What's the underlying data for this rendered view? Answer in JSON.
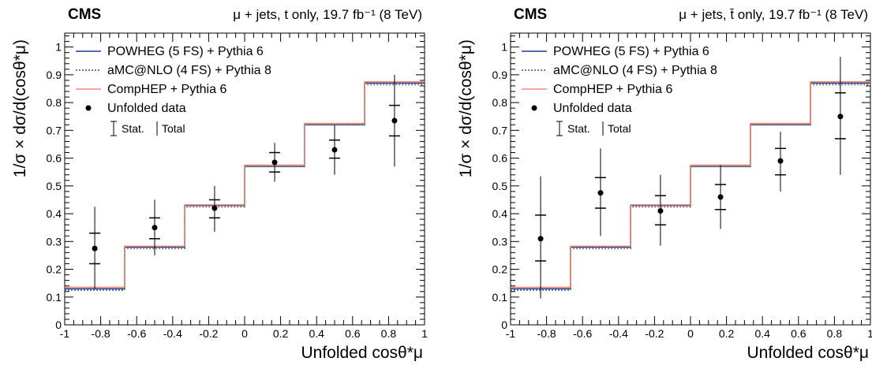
{
  "chart_data": [
    {
      "type": "line",
      "title": "",
      "experiment_label": "CMS",
      "header": "μ + jets, t only, 19.7 fb⁻¹ (8 TeV)",
      "xlabel": "Unfolded cosθ*μ",
      "ylabel": "1/σ × dσ/d(cosθ*μ)",
      "xlim": [
        -1,
        1
      ],
      "ylim": [
        0,
        1.05
      ],
      "x_ticks": [
        "-1",
        "-0.8",
        "-0.6",
        "-0.4",
        "-0.2",
        "0",
        "0.2",
        "0.4",
        "0.6",
        "0.8",
        "1"
      ],
      "y_ticks": [
        "0",
        "0.1",
        "0.2",
        "0.3",
        "0.4",
        "0.5",
        "0.6",
        "0.7",
        "0.8",
        "0.9",
        "1"
      ],
      "bin_edges": [
        -1,
        -0.667,
        -0.333,
        0,
        0.333,
        0.667,
        1
      ],
      "series": [
        {
          "name": "POWHEG (5 FS) + Pythia 6",
          "style": "solid",
          "color": "#1f3a93",
          "values": [
            0.13,
            0.28,
            0.43,
            0.57,
            0.72,
            0.87
          ]
        },
        {
          "name": "aMC@NLO (4 FS) + Pythia 8",
          "style": "dotted",
          "color": "#777777",
          "values": [
            0.125,
            0.275,
            0.425,
            0.57,
            0.72,
            0.865
          ]
        },
        {
          "name": "CompHEP + Pythia 6",
          "style": "solid",
          "color": "#f08a70",
          "values": [
            0.135,
            0.283,
            0.432,
            0.575,
            0.725,
            0.875
          ]
        }
      ],
      "data_points": {
        "name": "Unfolded data",
        "x": [
          -0.833,
          -0.5,
          -0.167,
          0.167,
          0.5,
          0.833
        ],
        "y": [
          0.275,
          0.35,
          0.42,
          0.585,
          0.63,
          0.735
        ],
        "stat_low": [
          0.22,
          0.31,
          0.385,
          0.55,
          0.6,
          0.68
        ],
        "stat_high": [
          0.33,
          0.385,
          0.45,
          0.62,
          0.665,
          0.79
        ],
        "total_low": [
          0.13,
          0.25,
          0.335,
          0.515,
          0.54,
          0.57
        ],
        "total_high": [
          0.425,
          0.45,
          0.5,
          0.655,
          0.72,
          0.9
        ]
      },
      "legend": {
        "stat_label": "Stat.",
        "total_label": "Total",
        "placement": "top-left"
      }
    },
    {
      "type": "line",
      "title": "",
      "experiment_label": "CMS",
      "header": "μ + jets, t̄ only, 19.7 fb⁻¹ (8 TeV)",
      "xlabel": "Unfolded cosθ*μ",
      "ylabel": "1/σ × dσ/d(cosθ*μ)",
      "xlim": [
        -1,
        1
      ],
      "ylim": [
        0,
        1.05
      ],
      "x_ticks": [
        "-1",
        "-0.8",
        "-0.6",
        "-0.4",
        "-0.2",
        "0",
        "0.2",
        "0.4",
        "0.6",
        "0.8",
        "1"
      ],
      "y_ticks": [
        "0",
        "0.1",
        "0.2",
        "0.3",
        "0.4",
        "0.5",
        "0.6",
        "0.7",
        "0.8",
        "0.9",
        "1"
      ],
      "bin_edges": [
        -1,
        -0.667,
        -0.333,
        0,
        0.333,
        0.667,
        1
      ],
      "series": [
        {
          "name": "POWHEG (5 FS) + Pythia 6",
          "style": "solid",
          "color": "#1f3a93",
          "values": [
            0.13,
            0.28,
            0.43,
            0.57,
            0.72,
            0.87
          ]
        },
        {
          "name": "aMC@NLO (4 FS) + Pythia 8",
          "style": "dotted",
          "color": "#777777",
          "values": [
            0.125,
            0.275,
            0.425,
            0.57,
            0.72,
            0.865
          ]
        },
        {
          "name": "CompHEP + Pythia 6",
          "style": "solid",
          "color": "#f08a70",
          "values": [
            0.135,
            0.283,
            0.432,
            0.575,
            0.725,
            0.875
          ]
        }
      ],
      "data_points": {
        "name": "Unfolded data",
        "x": [
          -0.833,
          -0.5,
          -0.167,
          0.167,
          0.5,
          0.833
        ],
        "y": [
          0.31,
          0.475,
          0.41,
          0.46,
          0.59,
          0.75
        ],
        "stat_low": [
          0.23,
          0.42,
          0.36,
          0.415,
          0.54,
          0.67
        ],
        "stat_high": [
          0.395,
          0.53,
          0.465,
          0.505,
          0.635,
          0.835
        ],
        "total_low": [
          0.095,
          0.32,
          0.285,
          0.345,
          0.48,
          0.54
        ],
        "total_high": [
          0.535,
          0.635,
          0.54,
          0.575,
          0.695,
          0.965
        ]
      },
      "legend": {
        "stat_label": "Stat.",
        "total_label": "Total",
        "placement": "top-left"
      }
    }
  ]
}
